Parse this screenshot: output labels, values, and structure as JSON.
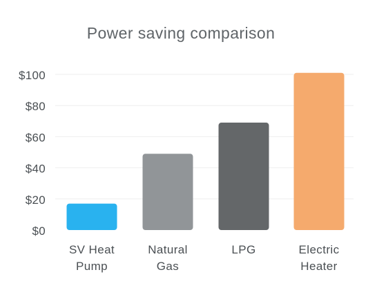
{
  "chart_data": {
    "type": "bar",
    "title": "Power saving comparison",
    "xlabel": "",
    "ylabel": "",
    "ylim": [
      0,
      100
    ],
    "yticks": [
      "$0",
      "$20",
      "$40",
      "$60",
      "$80",
      "$100"
    ],
    "ytick_values": [
      0,
      20,
      40,
      60,
      80,
      100
    ],
    "categories": [
      [
        "SV Heat",
        "Pump"
      ],
      [
        "Natural",
        "Gas"
      ],
      [
        "LPG"
      ],
      [
        "Electric",
        "Heater"
      ]
    ],
    "values": [
      17,
      49,
      69,
      101
    ],
    "colors": [
      "#29b2ef",
      "#919598",
      "#646769",
      "#f5aa6d"
    ],
    "grid": true,
    "legend": "none"
  }
}
